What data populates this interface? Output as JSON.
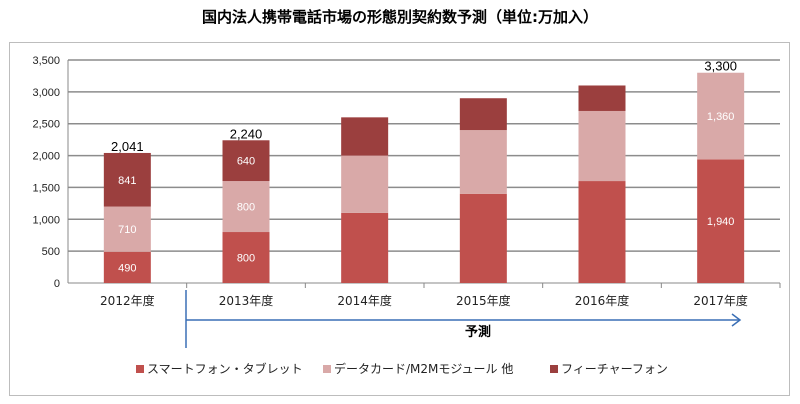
{
  "chart_data": {
    "type": "bar",
    "stacked": true,
    "title": "国内法人携帯電話市場の形態別契約数予測（単位:万加入）",
    "categories": [
      "2012年度",
      "2013年度",
      "2014年度",
      "2015年度",
      "2016年度",
      "2017年度"
    ],
    "series": [
      {
        "name": "スマートフォン・タブレット",
        "color": "#c0504d",
        "values": [
          490,
          800,
          1100,
          1400,
          1600,
          1940
        ],
        "labels": [
          "490",
          "800",
          "",
          "",
          "",
          "1,940"
        ]
      },
      {
        "name": "データカード/M2Mモジュール 他",
        "color": "#d9a9a8",
        "values": [
          710,
          800,
          900,
          1000,
          1100,
          1360
        ],
        "labels": [
          "710",
          "800",
          "",
          "",
          "",
          "1,360"
        ]
      },
      {
        "name": "フィーチャーフォン",
        "color": "#9b3f3e",
        "values": [
          841,
          640,
          600,
          500,
          400,
          0
        ],
        "labels": [
          "841",
          "640",
          "",
          "",
          "",
          ""
        ]
      }
    ],
    "totals": [
      "2,041",
      "2,240",
      "",
      "",
      "",
      "3,300"
    ],
    "ylim": [
      0,
      3500
    ],
    "yticks": [
      "0",
      "500",
      "1,000",
      "1,500",
      "2,000",
      "2,500",
      "3,000",
      "3,500"
    ],
    "grid": true,
    "legend": "bottom",
    "annotation": "予測"
  }
}
